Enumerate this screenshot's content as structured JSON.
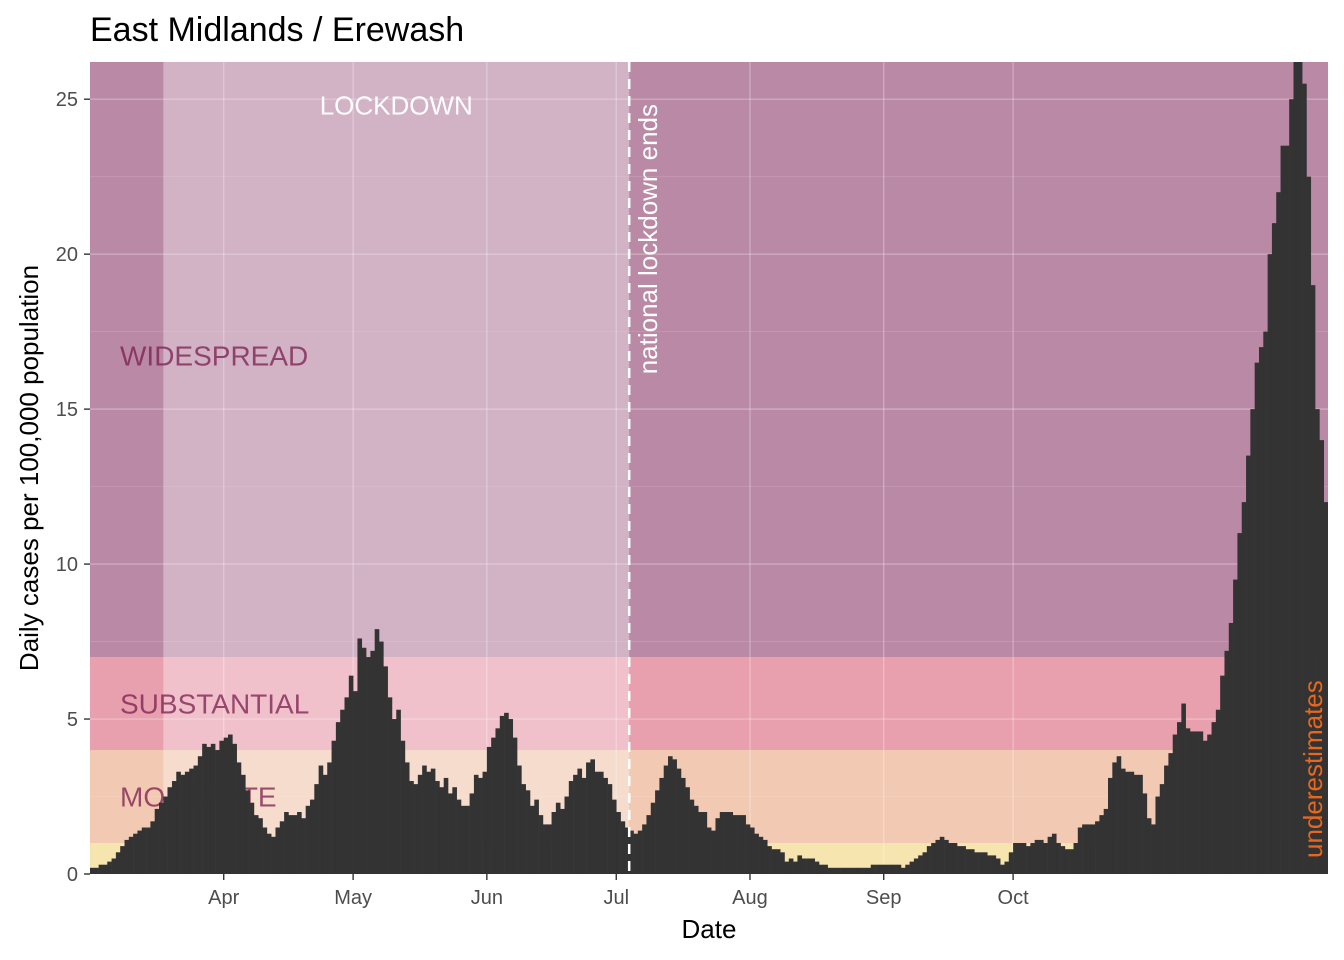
{
  "chart_data": {
    "type": "bar",
    "title": "East Midlands / Erewash",
    "xlabel": "Date",
    "ylabel": "Daily cases per 100,000 population",
    "x_start": "2020-03-01",
    "ylim": [
      0,
      26.2
    ],
    "y_ticks": [
      0,
      5,
      10,
      15,
      20,
      25
    ],
    "x_ticks": [
      {
        "date": "2020-04-01",
        "label": "Apr"
      },
      {
        "date": "2020-05-01",
        "label": "May"
      },
      {
        "date": "2020-06-01",
        "label": "Jun"
      },
      {
        "date": "2020-07-01",
        "label": "Jul"
      },
      {
        "date": "2020-08-01",
        "label": "Aug"
      },
      {
        "date": "2020-09-01",
        "label": "Sep"
      },
      {
        "date": "2020-10-01",
        "label": "Oct"
      }
    ],
    "bands": [
      {
        "label": "",
        "ymin": 0,
        "ymax": 1,
        "color": "#f2d479"
      },
      {
        "label": "MODERATE",
        "ymin": 1,
        "ymax": 4,
        "color": "#eaa57f"
      },
      {
        "label": "SUBSTANTIAL",
        "ymin": 4,
        "ymax": 7,
        "color": "#d9607a"
      },
      {
        "label": "WIDESPREAD",
        "ymin": 7,
        "ymax": 26.2,
        "color": "#8c3b6a"
      }
    ],
    "lockdown": {
      "label": "LOCKDOWN",
      "start": "2020-03-18",
      "end": "2020-07-04"
    },
    "vline": {
      "date": "2020-07-04",
      "label": "national lockdown ends"
    },
    "underestimate_label": "underestimates",
    "colors": {
      "bars": "#333333",
      "underestimate": "#e8671c",
      "vline": "#ffffff",
      "band_label_text": "#7a1c4d"
    },
    "values": [
      0.2,
      0.2,
      0.3,
      0.3,
      0.4,
      0.5,
      0.7,
      0.9,
      1.1,
      1.2,
      1.3,
      1.4,
      1.5,
      1.5,
      1.7,
      2.1,
      2.3,
      2.5,
      2.8,
      3.0,
      3.3,
      3.2,
      3.3,
      3.4,
      3.5,
      3.8,
      4.2,
      4.1,
      4.2,
      4.0,
      4.3,
      4.4,
      4.5,
      4.2,
      3.6,
      3.2,
      2.7,
      2.3,
      1.9,
      1.8,
      1.5,
      1.3,
      1.2,
      1.5,
      1.7,
      2.0,
      1.9,
      1.9,
      2.0,
      1.8,
      2.2,
      2.4,
      2.9,
      3.5,
      3.2,
      3.6,
      4.3,
      4.9,
      5.3,
      5.7,
      6.4,
      5.9,
      7.6,
      7.3,
      7.0,
      7.2,
      7.9,
      7.5,
      6.7,
      5.7,
      5.0,
      5.3,
      4.3,
      3.6,
      3.0,
      2.9,
      3.2,
      3.5,
      3.3,
      3.4,
      3.0,
      2.8,
      3.1,
      2.6,
      2.8,
      2.4,
      2.2,
      2.2,
      2.6,
      3.2,
      3.1,
      3.3,
      4.1,
      4.4,
      4.7,
      5.1,
      5.2,
      5.0,
      4.4,
      3.5,
      2.9,
      2.7,
      2.2,
      2.4,
      1.9,
      1.6,
      1.6,
      2.0,
      2.3,
      2.1,
      2.5,
      3.0,
      3.2,
      3.4,
      3.1,
      3.6,
      3.7,
      3.3,
      3.3,
      3.1,
      2.9,
      2.4,
      2.0,
      1.7,
      1.5,
      1.4,
      1.3,
      1.4,
      1.6,
      1.9,
      2.3,
      2.7,
      3.1,
      3.5,
      3.8,
      3.7,
      3.4,
      3.1,
      2.8,
      2.4,
      2.2,
      2.0,
      2.0,
      1.5,
      1.4,
      1.8,
      2.0,
      2.0,
      2.0,
      1.9,
      1.9,
      1.9,
      1.6,
      1.5,
      1.3,
      1.2,
      1.1,
      0.9,
      0.8,
      0.8,
      0.7,
      0.4,
      0.5,
      0.4,
      0.6,
      0.5,
      0.5,
      0.5,
      0.4,
      0.3,
      0.3,
      0.2,
      0.2,
      0.2,
      0.2,
      0.2,
      0.2,
      0.2,
      0.2,
      0.2,
      0.2,
      0.3,
      0.3,
      0.3,
      0.3,
      0.3,
      0.3,
      0.3,
      0.2,
      0.3,
      0.4,
      0.5,
      0.6,
      0.7,
      0.9,
      1.0,
      1.1,
      1.2,
      1.1,
      1.0,
      1.0,
      0.9,
      0.9,
      0.8,
      0.8,
      0.7,
      0.7,
      0.7,
      0.6,
      0.6,
      0.5,
      0.3,
      0.4,
      0.7,
      1.0,
      1.0,
      1.0,
      0.9,
      1.0,
      1.1,
      1.1,
      1.0,
      1.2,
      1.3,
      1.0,
      0.9,
      0.8,
      0.8,
      1.0,
      1.5,
      1.6,
      1.6,
      1.6,
      1.7,
      1.9,
      2.1,
      3.1,
      3.6,
      3.8,
      3.4,
      3.3,
      3.3,
      3.2,
      3.2,
      2.6,
      1.8,
      1.6,
      2.5,
      2.9,
      3.5,
      3.9,
      4.5,
      4.9,
      5.5,
      4.7,
      4.6,
      4.6,
      4.6,
      4.3,
      4.5,
      4.9,
      5.3,
      6.4,
      7.2,
      8.1,
      9.5,
      11.0,
      12.0,
      13.5,
      15.0,
      16.5,
      17.0,
      17.5,
      20.0,
      21.0,
      22.0,
      23.5,
      23.5,
      25.0,
      26.5,
      26.2,
      25.5,
      22.5,
      19.0,
      15.0,
      14.0,
      12.0
    ]
  }
}
